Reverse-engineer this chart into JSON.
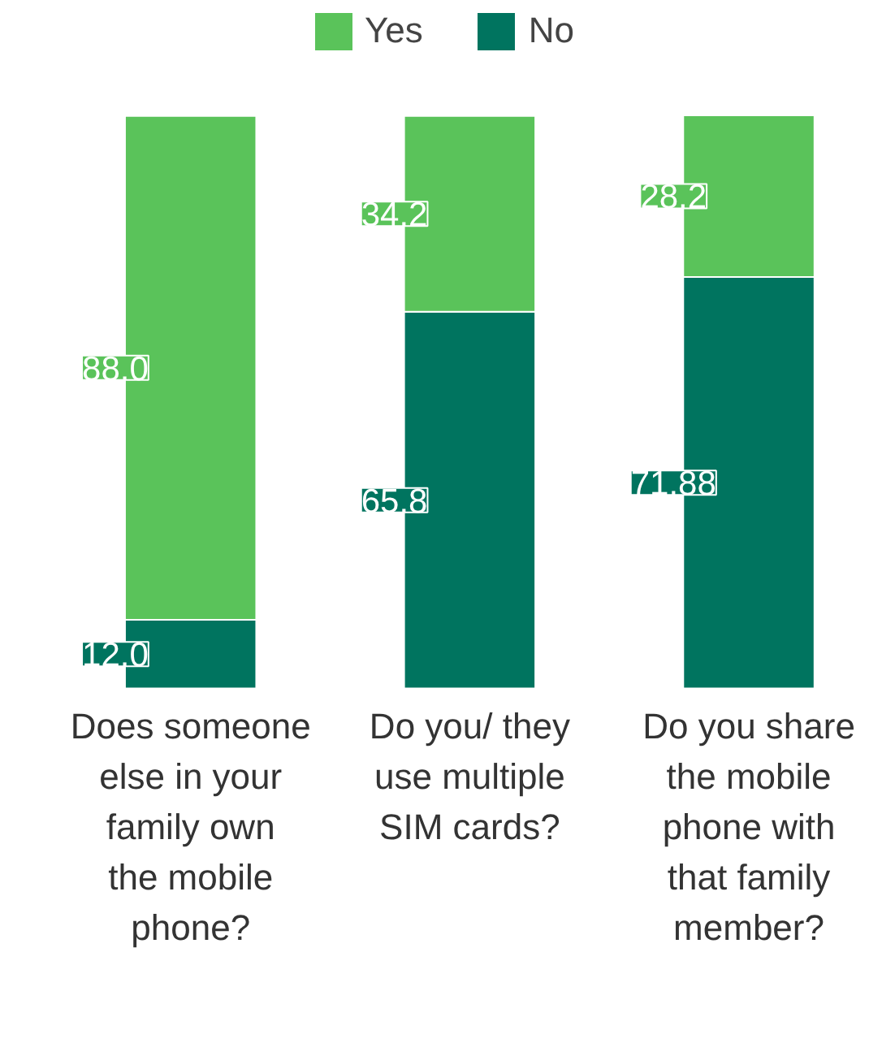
{
  "chart_data": {
    "type": "bar",
    "stacked": true,
    "categories": [
      "Does someone else in your family own the mobile phone?",
      "Do you/ they use multiple SIM cards?",
      "Do you share the mobile phone with that family member?"
    ],
    "series": [
      {
        "name": "No",
        "color": "#00745f",
        "values": [
          12.0,
          65.8,
          71.88
        ],
        "value_labels": [
          "12.0",
          "65.8",
          "71.88"
        ]
      },
      {
        "name": "Yes",
        "color": "#5ac35a",
        "values": [
          88.0,
          34.2,
          28.2
        ],
        "value_labels": [
          "88.0",
          "34.2",
          "28.2"
        ]
      }
    ],
    "legend": "top"
  }
}
